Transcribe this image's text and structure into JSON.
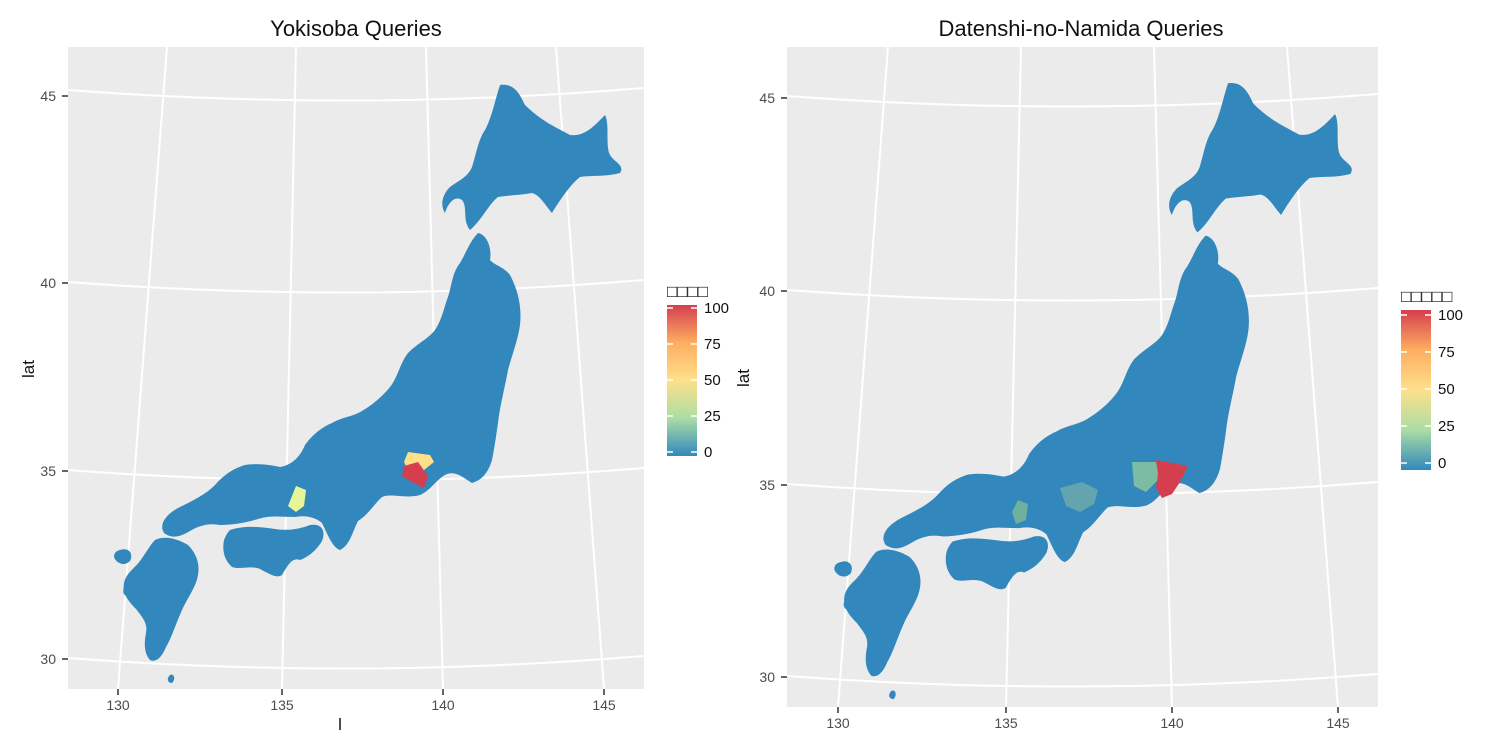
{
  "maps": [
    {
      "id": "left",
      "title": "Yokisoba Queries",
      "y_axis_label": "lat",
      "x_axis_label": "l",
      "lat_ticks": [
        "45",
        "40",
        "35",
        "30"
      ],
      "lon_ticks": [
        "130",
        "135",
        "140",
        "145"
      ],
      "legend_title": "□□□□",
      "legend_ticks": [
        "100",
        "75",
        "50",
        "25",
        "0"
      ],
      "highlights": [
        {
          "name": "tokyo-kanagawa",
          "value": 100
        },
        {
          "name": "saitama-chiba-border",
          "value": 45
        },
        {
          "name": "kyoto-nara",
          "value": 45
        }
      ]
    },
    {
      "id": "right",
      "title": "Datenshi-no-Namida Queries",
      "y_axis_label": "lat",
      "x_axis_label": "",
      "lat_ticks": [
        "45",
        "40",
        "35",
        "30"
      ],
      "lon_ticks": [
        "130",
        "135",
        "140",
        "145"
      ],
      "legend_title": "□□□□□",
      "legend_ticks": [
        "100",
        "75",
        "50",
        "25",
        "0"
      ],
      "highlights": [
        {
          "name": "chiba",
          "value": 100
        },
        {
          "name": "kanagawa-tokyo",
          "value": 22
        },
        {
          "name": "aichi-gifu",
          "value": 10
        },
        {
          "name": "kyoto",
          "value": 12
        }
      ]
    }
  ],
  "colors": {
    "panel_bg": "#ebebeb",
    "grid": "#ffffff",
    "land": "#3288bd",
    "scale_top": "#d53e4f",
    "scale_mid": "#fee08b",
    "scale_green": "#abdda4",
    "scale_bottom": "#3288bd"
  }
}
